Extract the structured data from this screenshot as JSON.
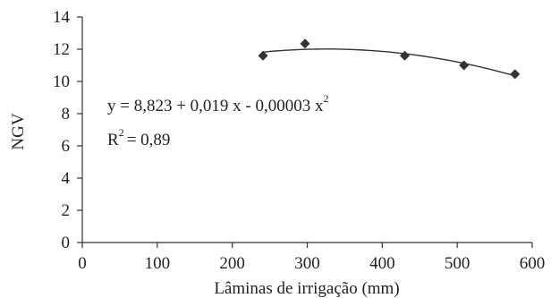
{
  "chart_data": {
    "type": "scatter",
    "xlabel": "Lâminas de irrigação (mm)",
    "ylabel": "NGV",
    "xlim": [
      0,
      600
    ],
    "ylim": [
      0,
      14
    ],
    "xticks": [
      0,
      100,
      200,
      300,
      400,
      500,
      600
    ],
    "yticks": [
      0,
      2,
      4,
      6,
      8,
      10,
      12,
      14
    ],
    "grid": false,
    "points": [
      {
        "x": 241,
        "y": 11.6
      },
      {
        "x": 297,
        "y": 12.35
      },
      {
        "x": 430,
        "y": 11.6
      },
      {
        "x": 509,
        "y": 11.0
      },
      {
        "x": 577,
        "y": 10.45
      }
    ],
    "fit": {
      "type": "quadratic",
      "a": 8.823,
      "b": 0.019,
      "c": -3e-05,
      "x_range": [
        241,
        577
      ]
    },
    "equation": {
      "main": "y = 8,823 + 0,019 x - 0,00003 x",
      "exp": "2"
    },
    "r2": {
      "prefix": "R",
      "exp": "2",
      "rest": "= 0,89"
    },
    "colors": {
      "marker": "#333333",
      "line": "#333333",
      "axis": "#333333"
    }
  }
}
